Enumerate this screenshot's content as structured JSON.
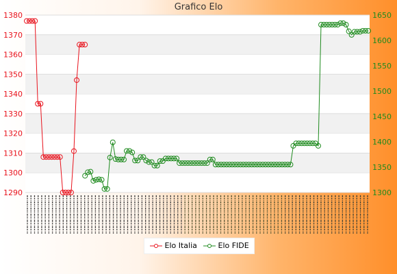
{
  "chart_data": {
    "type": "line",
    "title": "Grafico Elo",
    "xlabel": "",
    "ylabel_left": "",
    "ylabel_right": "",
    "left_axis": {
      "min": 1290,
      "max": 1380,
      "ticks": [
        1290,
        1300,
        1310,
        1320,
        1330,
        1340,
        1350,
        1360,
        1370,
        1380
      ],
      "color": "#e8111b"
    },
    "right_axis": {
      "min": 1300,
      "max": 1650,
      "ticks": [
        1300,
        1350,
        1400,
        1450,
        1500,
        1550,
        1600,
        1650
      ],
      "color": "#1d8a1d"
    },
    "grid": true,
    "legend_position": "bottom",
    "x_tick_count": 96,
    "series": [
      {
        "name": "Elo Italia",
        "axis": "left",
        "color": "#e8111b",
        "points": [
          [
            0,
            1377
          ],
          [
            1,
            1377
          ],
          [
            2,
            1377
          ],
          [
            3,
            1377
          ],
          [
            4,
            1335
          ],
          [
            5,
            1335
          ],
          [
            6,
            1308
          ],
          [
            7,
            1308
          ],
          [
            8,
            1308
          ],
          [
            9,
            1308
          ],
          [
            10,
            1308
          ],
          [
            11,
            1308
          ],
          [
            12,
            1308
          ],
          [
            13,
            1290
          ],
          [
            14,
            1290
          ],
          [
            15,
            1290
          ],
          [
            16,
            1290
          ],
          [
            17,
            1311
          ],
          [
            18,
            1347
          ],
          [
            19,
            1365
          ],
          [
            20,
            1365
          ],
          [
            21,
            1365
          ]
        ]
      },
      {
        "name": "Elo FIDE",
        "axis": "right",
        "color": "#1d8a1d",
        "points": [
          [
            21,
            1333
          ],
          [
            22,
            1340
          ],
          [
            23,
            1341
          ],
          [
            24,
            1323
          ],
          [
            25,
            1325
          ],
          [
            26,
            1326
          ],
          [
            27,
            1325
          ],
          [
            28,
            1307
          ],
          [
            29,
            1307
          ],
          [
            30,
            1369
          ],
          [
            31,
            1399
          ],
          [
            32,
            1366
          ],
          [
            33,
            1365
          ],
          [
            34,
            1365
          ],
          [
            35,
            1365
          ],
          [
            36,
            1382
          ],
          [
            37,
            1382
          ],
          [
            38,
            1379
          ],
          [
            39,
            1363
          ],
          [
            40,
            1363
          ],
          [
            41,
            1370
          ],
          [
            42,
            1370
          ],
          [
            43,
            1363
          ],
          [
            44,
            1360
          ],
          [
            45,
            1360
          ],
          [
            46,
            1353
          ],
          [
            47,
            1353
          ],
          [
            48,
            1362
          ],
          [
            49,
            1362
          ],
          [
            50,
            1367
          ],
          [
            51,
            1367
          ],
          [
            52,
            1367
          ],
          [
            53,
            1367
          ],
          [
            54,
            1367
          ],
          [
            55,
            1358
          ],
          [
            56,
            1358
          ],
          [
            57,
            1358
          ],
          [
            58,
            1358
          ],
          [
            59,
            1358
          ],
          [
            60,
            1358
          ],
          [
            61,
            1358
          ],
          [
            62,
            1358
          ],
          [
            63,
            1358
          ],
          [
            64,
            1358
          ],
          [
            65,
            1358
          ],
          [
            66,
            1365
          ],
          [
            67,
            1365
          ],
          [
            68,
            1355
          ],
          [
            69,
            1355
          ],
          [
            70,
            1355
          ],
          [
            71,
            1355
          ],
          [
            72,
            1355
          ],
          [
            73,
            1355
          ],
          [
            74,
            1355
          ],
          [
            75,
            1355
          ],
          [
            76,
            1355
          ],
          [
            77,
            1355
          ],
          [
            78,
            1355
          ],
          [
            79,
            1355
          ],
          [
            80,
            1355
          ],
          [
            81,
            1355
          ],
          [
            82,
            1355
          ],
          [
            83,
            1355
          ],
          [
            84,
            1355
          ],
          [
            85,
            1355
          ],
          [
            86,
            1355
          ],
          [
            87,
            1355
          ],
          [
            88,
            1355
          ],
          [
            89,
            1355
          ],
          [
            90,
            1355
          ],
          [
            91,
            1355
          ],
          [
            92,
            1355
          ],
          [
            93,
            1355
          ],
          [
            94,
            1355
          ],
          [
            95,
            1355
          ],
          [
            96,
            1392
          ],
          [
            97,
            1397
          ],
          [
            98,
            1397
          ],
          [
            99,
            1397
          ],
          [
            100,
            1397
          ],
          [
            101,
            1397
          ],
          [
            102,
            1397
          ],
          [
            103,
            1397
          ],
          [
            104,
            1397
          ],
          [
            105,
            1392
          ],
          [
            106,
            1631
          ],
          [
            107,
            1631
          ],
          [
            108,
            1631
          ],
          [
            109,
            1631
          ],
          [
            110,
            1631
          ],
          [
            111,
            1631
          ],
          [
            112,
            1631
          ],
          [
            113,
            1634
          ],
          [
            114,
            1634
          ],
          [
            115,
            1631
          ],
          [
            116,
            1618
          ],
          [
            117,
            1611
          ],
          [
            118,
            1617
          ],
          [
            119,
            1617
          ],
          [
            120,
            1617
          ],
          [
            121,
            1619
          ],
          [
            122,
            1619
          ],
          [
            123,
            1619
          ]
        ]
      }
    ]
  },
  "legend": {
    "italia_label": "Elo Italia",
    "fide_label": "Elo FIDE"
  }
}
